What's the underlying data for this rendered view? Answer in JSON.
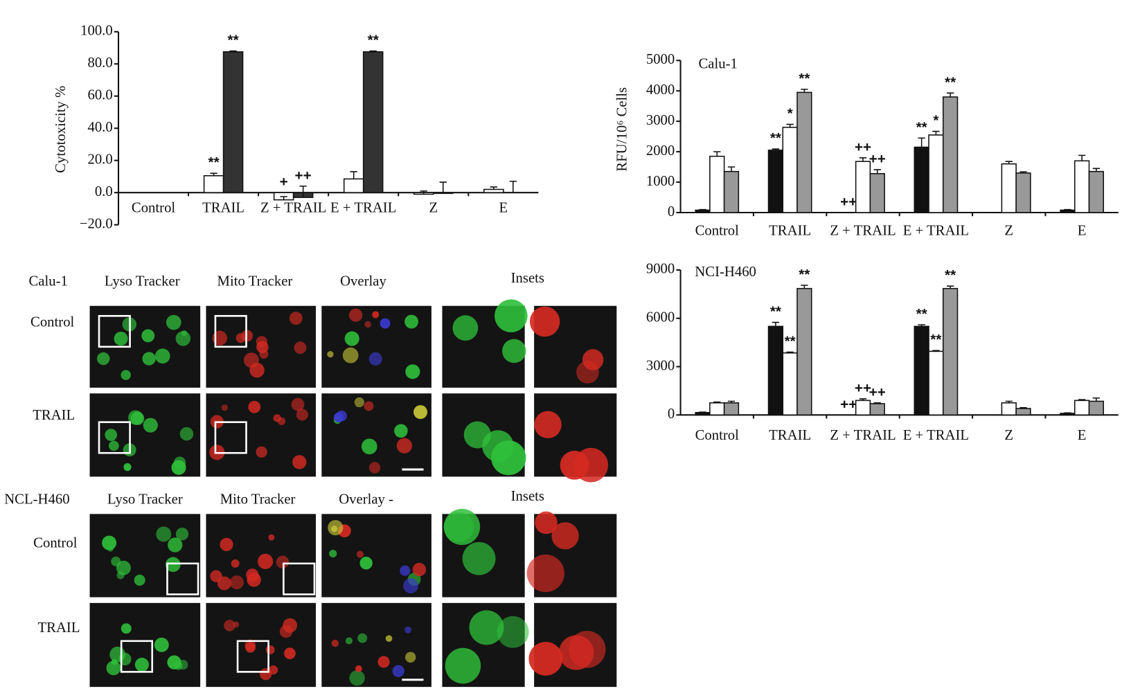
{
  "chart_data": [
    {
      "type": "bar",
      "ylabel": "Cytotoxicity %",
      "categories": [
        "Control",
        "TRAIL",
        "Z + TRAIL",
        "E + TRAIL",
        "Z",
        "E"
      ],
      "ylim": [
        -20,
        100
      ],
      "yticks": [
        {
          "value": -20,
          "label": "−20.0"
        },
        {
          "value": 0,
          "label": "0.0"
        },
        {
          "value": 20,
          "label": "20.0"
        },
        {
          "value": 40,
          "label": "40.0"
        },
        {
          "value": 60,
          "label": "60.0"
        },
        {
          "value": 80,
          "label": "80.0"
        },
        {
          "value": 100,
          "label": "100.0"
        }
      ],
      "series": [
        {
          "color": "#ffffff",
          "values": [
            null,
            10.5,
            -4.5,
            8.5,
            -1,
            2
          ],
          "errors": [
            null,
            1.5,
            2,
            4.5,
            2,
            1.5
          ],
          "annotations": [
            null,
            "**",
            "+",
            null,
            null,
            null
          ]
        },
        {
          "color": "#333333",
          "values": [
            null,
            87.5,
            -3,
            87.5,
            -0.5,
            0
          ],
          "errors": [
            null,
            0.5,
            7,
            0.5,
            7,
            7
          ],
          "annotations": [
            null,
            "**",
            "++",
            "**",
            null,
            null
          ]
        }
      ]
    },
    {
      "type": "bar",
      "title": "Calu-1",
      "ylabel": "RFU/10⁶ Cells",
      "categories": [
        "Control",
        "TRAIL",
        "Z + TRAIL",
        "E + TRAIL",
        "Z",
        "E"
      ],
      "ylim": [
        0,
        5000
      ],
      "yticks": [
        0,
        1000,
        2000,
        3000,
        4000,
        5000
      ],
      "series": [
        {
          "color": "#111111",
          "values": [
            80,
            2050,
            0,
            2150,
            0,
            80
          ],
          "errors": [
            20,
            40,
            0,
            300,
            0,
            20
          ],
          "annotations": [
            null,
            "**",
            "++",
            "**",
            null,
            null
          ]
        },
        {
          "color": "#ffffff",
          "values": [
            1850,
            2800,
            1680,
            2550,
            1600,
            1700
          ],
          "errors": [
            150,
            100,
            120,
            120,
            80,
            180
          ],
          "annotations": [
            null,
            "*",
            "++",
            "*",
            null,
            null
          ]
        },
        {
          "color": "#999999",
          "values": [
            1350,
            3950,
            1280,
            3800,
            1300,
            1350
          ],
          "errors": [
            150,
            100,
            130,
            130,
            40,
            100
          ],
          "annotations": [
            null,
            "**",
            "++",
            "**",
            null,
            null
          ]
        }
      ]
    },
    {
      "type": "bar",
      "title": "NCI-H460",
      "categories": [
        "Control",
        "TRAIL",
        "Z + TRAIL",
        "E + TRAIL",
        "Z",
        "E"
      ],
      "ylim": [
        0,
        9000
      ],
      "yticks": [
        0,
        3000,
        6000,
        9000
      ],
      "series": [
        {
          "color": "#111111",
          "values": [
            150,
            5500,
            0,
            5500,
            0,
            100
          ],
          "errors": [
            30,
            250,
            0,
            100,
            0,
            30
          ],
          "annotations": [
            null,
            "**",
            "++",
            "**",
            null,
            null
          ]
        },
        {
          "color": "#ffffff",
          "values": [
            750,
            3850,
            900,
            3950,
            750,
            900
          ],
          "errors": [
            50,
            50,
            100,
            50,
            100,
            50
          ],
          "annotations": [
            null,
            "**",
            "++",
            "**",
            null,
            null
          ]
        },
        {
          "color": "#999999",
          "values": [
            750,
            7850,
            700,
            7850,
            400,
            850
          ],
          "errors": [
            100,
            200,
            50,
            150,
            50,
            200
          ],
          "annotations": [
            null,
            "**",
            "++",
            "**",
            null,
            null
          ]
        }
      ]
    }
  ],
  "micrographs": [
    {
      "cell_line": "Calu-1",
      "columns": [
        "Lyso Tracker",
        "Mito Tracker",
        "Overlay",
        "Insets"
      ],
      "rows": [
        "Control",
        "TRAIL"
      ]
    },
    {
      "cell_line": "NCL-H460",
      "columns": [
        "Lyso Tracker",
        "Mito Tracker",
        "Overlay -",
        "Insets"
      ],
      "rows": [
        "Control",
        "TRAIL"
      ]
    }
  ]
}
